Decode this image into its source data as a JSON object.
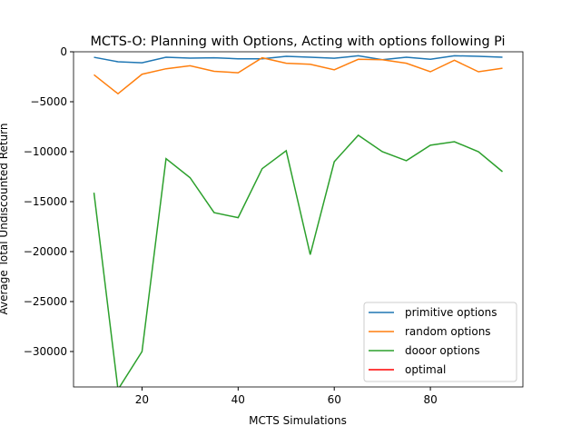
{
  "chart_data": {
    "type": "line",
    "title": "MCTS-O: Planning with Options, Acting with options following Pi",
    "xlabel": "MCTS Simulations",
    "ylabel": "Average Total Undiscounted Return",
    "x": [
      10,
      15,
      20,
      25,
      30,
      35,
      40,
      45,
      50,
      55,
      60,
      65,
      70,
      75,
      80,
      85,
      90,
      95
    ],
    "series": [
      {
        "name": "primitive options",
        "color": "#1f77b4",
        "values": [
          -550,
          -1000,
          -1100,
          -550,
          -640,
          -600,
          -700,
          -700,
          -450,
          -550,
          -650,
          -400,
          -800,
          -550,
          -750,
          -400,
          -450,
          -550
        ]
      },
      {
        "name": "random options",
        "color": "#ff7f0e",
        "values": [
          -2300,
          -4200,
          -2250,
          -1700,
          -1400,
          -1950,
          -2100,
          -600,
          -1150,
          -1250,
          -1800,
          -750,
          -800,
          -1150,
          -2000,
          -850,
          -2000,
          -1650
        ]
      },
      {
        "name": "dooor options",
        "color": "#2ca02c",
        "values": [
          -14100,
          -33800,
          -30000,
          -10700,
          -12600,
          -16100,
          -16600,
          -11700,
          -9900,
          -20300,
          -11000,
          -8350,
          -10000,
          -10900,
          -9350,
          -9000,
          -10000,
          -12000
        ]
      },
      {
        "name": "optimal",
        "color": "#ff0000",
        "values": [
          null,
          null,
          null,
          null,
          null,
          null,
          null,
          null,
          null,
          null,
          null,
          null,
          null,
          null,
          null,
          null,
          null,
          null
        ]
      }
    ],
    "xlim": [
      5.75,
      99.25
    ],
    "ylim": [
      -33545,
      0
    ],
    "xticks": [
      20,
      40,
      60,
      80
    ],
    "yticks": [
      0,
      {
        "value": -5000,
        "label": "−5000"
      },
      {
        "value": -10000,
        "label": "−10000"
      },
      {
        "value": -15000,
        "label": "−15000"
      },
      {
        "value": -20000,
        "label": "−20000"
      },
      {
        "value": -25000,
        "label": "−25000"
      },
      {
        "value": -30000,
        "label": "−30000"
      }
    ],
    "legend": "lower right"
  }
}
